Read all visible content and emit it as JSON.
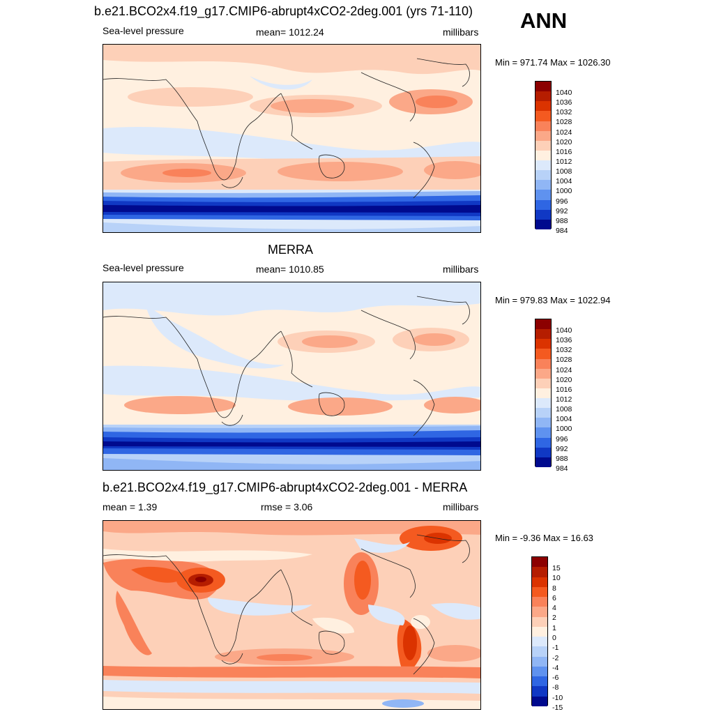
{
  "season": "ANN",
  "panels": [
    {
      "id": "model",
      "title": "b.e21.BCO2x4.f19_g17.CMIP6-abrupt4xCO2-2deg.001 (yrs 71-110)",
      "left_text": "Sea-level pressure",
      "center_text": "mean= 1012.24",
      "right_text": "millibars",
      "minmax_text": "Min = 971.74 Max = 1026.30",
      "colorbar": {
        "labels": [
          "1040",
          "1036",
          "1032",
          "1028",
          "1024",
          "1020",
          "1016",
          "1012",
          "1008",
          "1004",
          "1000",
          "996",
          "992",
          "988",
          "984"
        ],
        "colors": [
          "#8c0000",
          "#b51d00",
          "#db3300",
          "#f45a20",
          "#f9825a",
          "#fba888",
          "#fdd0b8",
          "#fff0e0",
          "#dce9fb",
          "#b8d2f8",
          "#90b6f5",
          "#5f92ef",
          "#2f66e3",
          "#1038c4",
          "#000a8e"
        ]
      }
    },
    {
      "id": "obs",
      "title": "MERRA",
      "left_text": "Sea-level pressure",
      "center_text": "mean= 1010.85",
      "right_text": "millibars",
      "minmax_text": "Min = 979.83 Max = 1022.94",
      "colorbar": {
        "labels": [
          "1040",
          "1036",
          "1032",
          "1028",
          "1024",
          "1020",
          "1016",
          "1012",
          "1008",
          "1004",
          "1000",
          "996",
          "992",
          "988",
          "984"
        ],
        "colors": [
          "#8c0000",
          "#b51d00",
          "#db3300",
          "#f45a20",
          "#f9825a",
          "#fba888",
          "#fdd0b8",
          "#fff0e0",
          "#dce9fb",
          "#b8d2f8",
          "#90b6f5",
          "#5f92ef",
          "#2f66e3",
          "#1038c4",
          "#000a8e"
        ]
      }
    },
    {
      "id": "diff",
      "title": "b.e21.BCO2x4.f19_g17.CMIP6-abrupt4xCO2-2deg.001 - MERRA",
      "left_text": "mean =   1.39",
      "center_text": "rmse =   3.06",
      "right_text": "millibars",
      "minmax_text": "Min =  -9.36 Max =  16.63",
      "colorbar": {
        "labels": [
          "15",
          "10",
          "8",
          "6",
          "4",
          "2",
          "1",
          "0",
          "-1",
          "-2",
          "-4",
          "-6",
          "-8",
          "-10",
          "-15"
        ],
        "colors": [
          "#8c0000",
          "#b51d00",
          "#db3300",
          "#f45a20",
          "#f9825a",
          "#fba888",
          "#fdd0b8",
          "#fff0e0",
          "#dce9fb",
          "#b8d2f8",
          "#90b6f5",
          "#5f92ef",
          "#2f66e3",
          "#1038c4",
          "#000a8e"
        ]
      }
    }
  ]
}
